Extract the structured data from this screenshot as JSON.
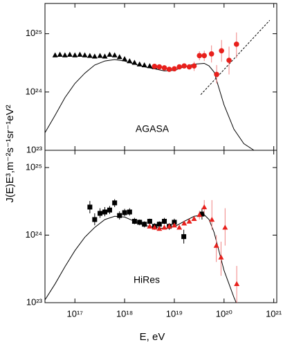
{
  "chart_data": [
    {
      "type": "scatter",
      "xscale": "log",
      "yscale": "log",
      "ylabel": "J(E)E³,m⁻²s⁻¹sr⁻¹eV²",
      "label": "AGASA",
      "xlim": [
        2.5e+16,
        1.15e+21
      ],
      "ylim": [
        1e+23,
        3.3e+25
      ],
      "yticks": [
        {
          "value": 1e+23,
          "label": "10²³"
        },
        {
          "value": 1e+24,
          "label": "10²⁴"
        },
        {
          "value": 1e+25,
          "label": "10²⁵"
        }
      ],
      "series": [
        {
          "marker": "triangle",
          "color": "#000000",
          "x": [
            4e+16,
            5e+16,
            6.3e+16,
            7.9e+16,
            1e+17,
            1.26e+17,
            1.58e+17,
            2e+17,
            2.5e+17,
            3.2e+17,
            4e+17,
            5e+17,
            6.3e+17,
            7.9e+17,
            1e+18,
            1.26e+18,
            1.58e+18,
            2e+18,
            2.5e+18,
            3.2e+18,
            4e+18
          ],
          "values": [
            4.3e+24,
            4.4e+24,
            4.3e+24,
            4.4e+24,
            4.3e+24,
            4.4e+24,
            4.3e+24,
            4.2e+24,
            4.1e+24,
            4.2e+24,
            4.1e+24,
            4.4e+24,
            4.3e+24,
            4e+24,
            3.7e+24,
            3.4e+24,
            3.2e+24,
            3e+24,
            2.9e+24,
            2.8e+24,
            2.7e+24
          ]
        },
        {
          "marker": "circle",
          "color": "#e8201c",
          "x": [
            4e+18,
            5e+18,
            6.3e+18,
            7.9e+18,
            1e+19,
            1.26e+19,
            1.58e+19,
            2e+19,
            2.5e+19,
            3.2e+19,
            4e+19,
            5.6e+19,
            7.1e+19,
            8.9e+19,
            1.26e+20,
            1.78e+20
          ],
          "values": [
            2.75e+24,
            2.7e+24,
            2.6e+24,
            2.45e+24,
            2.5e+24,
            2.7e+24,
            2.8e+24,
            2.7e+24,
            2.8e+24,
            4.2e+24,
            4.2e+24,
            4.5e+24,
            2e+24,
            5.1e+24,
            3.5e+24,
            6.6e+24
          ],
          "err_low": [
            null,
            null,
            null,
            null,
            null,
            null,
            null,
            null,
            2.3e+24,
            3.5e+24,
            3.4e+24,
            3.2e+24,
            1.4e+24,
            3.3e+24,
            2e+24,
            3.8e+24
          ],
          "err_high": [
            null,
            null,
            null,
            null,
            null,
            null,
            null,
            null,
            3.3e+24,
            5e+24,
            5.1e+24,
            6.3e+24,
            2.9e+24,
            7.8e+24,
            6e+24,
            1.05e+25
          ]
        }
      ],
      "lines": [
        {
          "color": "#000000",
          "dash": false,
          "x": [
            2.5e+16,
            4e+16,
            6.3e+16,
            1e+17,
            1.58e+17,
            2.5e+17,
            4e+17,
            6.3e+17,
            1e+18,
            1.58e+18,
            2.5e+18,
            4e+18,
            6.3e+18,
            1e+19,
            1.58e+19,
            2.5e+19,
            4e+19,
            5e+19,
            6.3e+19,
            1e+20,
            1.58e+20,
            2.5e+20,
            4e+20
          ],
          "values": [
            2e+23,
            4e+23,
            8e+23,
            1.4e+24,
            2.1e+24,
            2.9e+24,
            3.4e+24,
            3.6e+24,
            3.4e+24,
            3e+24,
            2.7e+24,
            2.5e+24,
            2.3e+24,
            2.35e+24,
            2.7e+24,
            3e+24,
            3.1e+24,
            2.8e+24,
            2.2e+24,
            6e+23,
            2.3e+23,
            1.3e+23,
            1e+23
          ]
        },
        {
          "color": "#000000",
          "dash": true,
          "x": [
            3.4e+19,
            8.3e+20
          ],
          "values": [
            9e+23,
            1.7e+25
          ]
        }
      ]
    },
    {
      "type": "scatter",
      "xscale": "log",
      "yscale": "log",
      "label": "HiRes",
      "xlabel": "E, eV",
      "xlim": [
        2.5e+16,
        1.15e+21
      ],
      "ylim": [
        1e+23,
        1.8e+25
      ],
      "xticks": [
        {
          "value": 1e+17,
          "label": "10¹⁷"
        },
        {
          "value": 1e+18,
          "label": "10¹⁸"
        },
        {
          "value": 1e+19,
          "label": "10¹⁹"
        },
        {
          "value": 1e+20,
          "label": "10²⁰"
        },
        {
          "value": 1e+21,
          "label": "10²¹"
        }
      ],
      "yticks": [
        {
          "value": 1e+23,
          "label": "10²³"
        },
        {
          "value": 1e+24,
          "label": "10²⁴"
        },
        {
          "value": 1e+25,
          "label": "10²⁵"
        }
      ],
      "series": [
        {
          "marker": "square",
          "color": "#000000",
          "x": [
            2e+17,
            2.5e+17,
            3.2e+17,
            4e+17,
            5e+17,
            6.3e+17,
            7.9e+17,
            1e+18,
            1.26e+18,
            1.58e+18,
            2e+18,
            2.5e+18,
            3.2e+18,
            4e+18,
            5e+18,
            6.3e+18,
            7.9e+18,
            1e+19,
            1.55e+19,
            3.6e+19
          ],
          "values": [
            2.6e+24,
            1.7e+24,
            2.1e+24,
            2.2e+24,
            2.35e+24,
            3e+24,
            1.95e+24,
            2.15e+24,
            2.2e+24,
            1.6e+24,
            1.55e+24,
            1.45e+24,
            1.6e+24,
            1.35e+24,
            1.45e+24,
            1.6e+24,
            1.35e+24,
            1.55e+24,
            9.5e+23,
            2.05e+24
          ],
          "err_low": [
            2.1e+24,
            1.4e+24,
            1.8e+24,
            1.9e+24,
            2.05e+24,
            2.6e+24,
            1.7e+24,
            1.9e+24,
            1.95e+24,
            1.45e+24,
            1.4e+24,
            1.3e+24,
            1.45e+24,
            1.2e+24,
            1.3e+24,
            1.45e+24,
            1.2e+24,
            1.35e+24,
            7.5e+23,
            1.7e+24
          ],
          "err_high": [
            3.2e+24,
            2.1e+24,
            2.5e+24,
            2.6e+24,
            2.7e+24,
            3.4e+24,
            2.25e+24,
            2.45e+24,
            2.5e+24,
            1.8e+24,
            1.7e+24,
            1.6e+24,
            1.75e+24,
            1.5e+24,
            1.6e+24,
            1.8e+24,
            1.5e+24,
            1.75e+24,
            1.2e+24,
            2.5e+24
          ]
        },
        {
          "marker": "triangle",
          "color": "#e8201c",
          "x": [
            3.2e+18,
            4e+18,
            5e+18,
            6.3e+18,
            7.9e+18,
            1e+19,
            1.26e+19,
            1.58e+19,
            2e+19,
            2.5e+19,
            3.2e+19,
            4e+19,
            5.7e+19,
            7e+19,
            8.7e+19,
            1.05e+20,
            1.8e+20
          ],
          "values": [
            1.35e+24,
            1.3e+24,
            1.25e+24,
            1.3e+24,
            1.35e+24,
            1.4e+24,
            1.3e+24,
            1.5e+24,
            1.6e+24,
            1.75e+24,
            2e+24,
            2.6e+24,
            1.7e+24,
            7e+23,
            4.7e+23,
            1.3e+24,
            1.9e+23
          ],
          "err_low": [
            null,
            null,
            null,
            null,
            null,
            null,
            null,
            null,
            null,
            null,
            1.7e+24,
            2.1e+24,
            1.2e+24,
            4e+23,
            2.5e+23,
            7e+23,
            1e+23
          ],
          "err_high": [
            null,
            null,
            null,
            null,
            null,
            null,
            null,
            null,
            null,
            null,
            2.3e+24,
            3.3e+24,
            3.3e+24,
            1e+24,
            8e+23,
            2.5e+24,
            3.5e+23
          ]
        }
      ],
      "lines": [
        {
          "color": "#000000",
          "dash": false,
          "x": [
            2.5e+16,
            4e+16,
            6.3e+16,
            1e+17,
            1.58e+17,
            2.5e+17,
            4e+17,
            6.3e+17,
            1e+18,
            1.58e+18,
            2.5e+18,
            4e+18,
            6.3e+18,
            1e+19,
            1.58e+19,
            2.5e+19,
            4e+19,
            5e+19,
            6.3e+19,
            1e+20,
            1.58e+20,
            2e+20
          ],
          "values": [
            1.1e+23,
            1.9e+23,
            3.4e+23,
            5.9e+23,
            9.3e+23,
            1.3e+24,
            1.7e+24,
            1.9e+24,
            1.85e+24,
            1.6e+24,
            1.4e+24,
            1.3e+24,
            1.25e+24,
            1.33e+24,
            1.6e+24,
            1.9e+24,
            2e+24,
            1.7e+24,
            1.1e+24,
            3e+23,
            1.2e+23,
            8e+22
          ]
        }
      ]
    }
  ]
}
